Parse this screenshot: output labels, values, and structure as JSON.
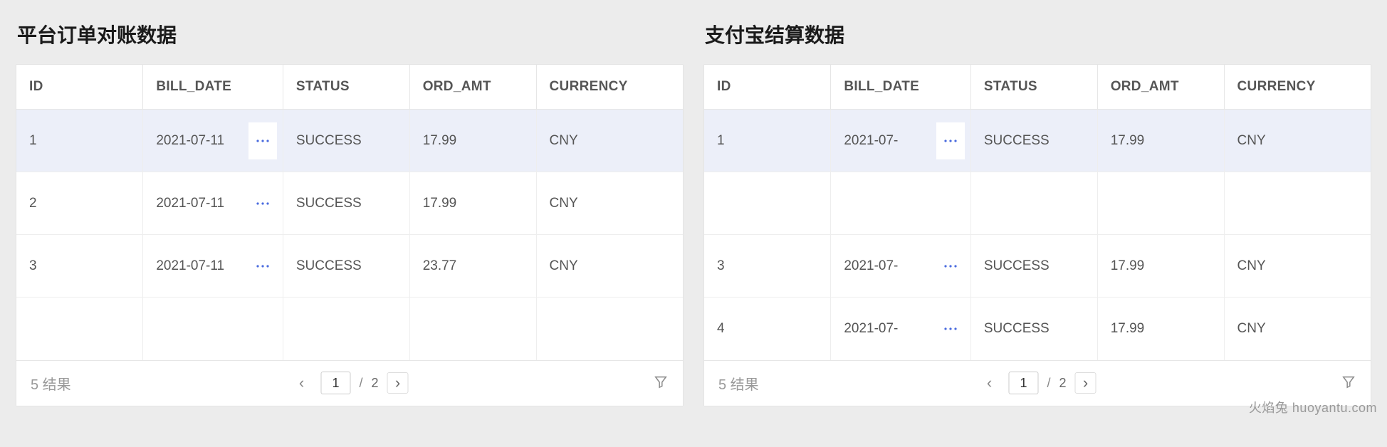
{
  "colors": {
    "page_bg": "#ececec",
    "panel_bg": "#ffffff",
    "border": "#e6e6e6",
    "text": "#555555",
    "title": "#1a1a1a",
    "highlight_bg": "#eceff9",
    "muted": "#999999",
    "ellipsis": "#4a6bdf"
  },
  "left": {
    "title": "平台订单对账数据",
    "columns": [
      "ID",
      "BILL_DATE",
      "STATUS",
      "ORD_AMT",
      "CURRENCY"
    ],
    "rows": [
      {
        "id": "1",
        "bill_date": "2021-07-11",
        "status": "SUCCESS",
        "ord_amt": "17.99",
        "currency": "CNY",
        "highlight": true,
        "ellipsis": true
      },
      {
        "id": "2",
        "bill_date": "2021-07-11",
        "status": "SUCCESS",
        "ord_amt": "17.99",
        "currency": "CNY",
        "highlight": false,
        "ellipsis": true
      },
      {
        "id": "3",
        "bill_date": "2021-07-11",
        "status": "SUCCESS",
        "ord_amt": "23.77",
        "currency": "CNY",
        "highlight": false,
        "ellipsis": true
      },
      {
        "id": "",
        "bill_date": "",
        "status": "",
        "ord_amt": "",
        "currency": "",
        "highlight": false,
        "ellipsis": false
      }
    ],
    "footer": {
      "results": "5 结果",
      "page_current": "1",
      "page_sep": "/",
      "page_total": "2"
    }
  },
  "right": {
    "title": "支付宝结算数据",
    "columns": [
      "ID",
      "BILL_DATE",
      "STATUS",
      "ORD_AMT",
      "CURRENCY"
    ],
    "rows": [
      {
        "id": "1",
        "bill_date": "2021-07-",
        "status": "SUCCESS",
        "ord_amt": "17.99",
        "currency": "CNY",
        "highlight": true,
        "ellipsis": true
      },
      {
        "id": "",
        "bill_date": "",
        "status": "",
        "ord_amt": "",
        "currency": "",
        "highlight": false,
        "ellipsis": false
      },
      {
        "id": "3",
        "bill_date": "2021-07-",
        "status": "SUCCESS",
        "ord_amt": "17.99",
        "currency": "CNY",
        "highlight": false,
        "ellipsis": true
      },
      {
        "id": "4",
        "bill_date": "2021-07-",
        "status": "SUCCESS",
        "ord_amt": "17.99",
        "currency": "CNY",
        "highlight": false,
        "ellipsis": true
      }
    ],
    "footer": {
      "results": "5 结果",
      "page_current": "1",
      "page_sep": "/",
      "page_total": "2"
    }
  },
  "watermark": "火焰兔 huoyantu.com"
}
